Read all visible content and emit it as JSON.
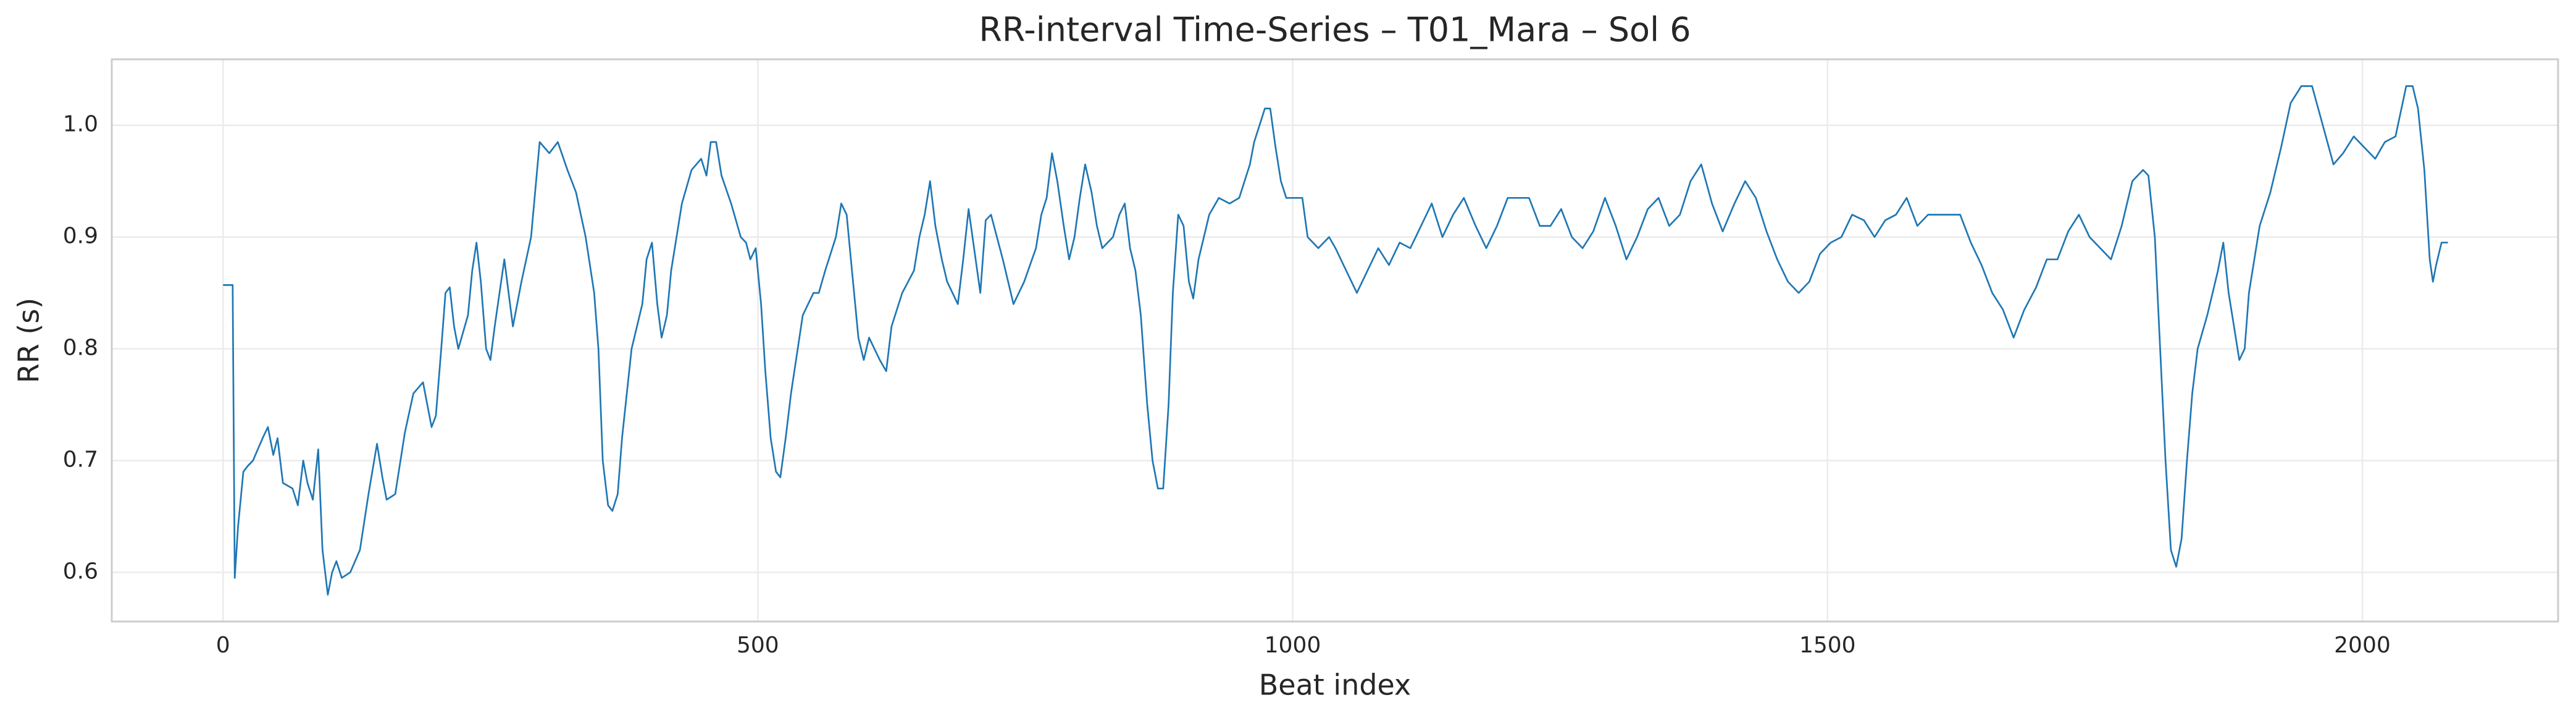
{
  "chart_data": {
    "type": "line",
    "title": "RR-interval Time-Series – T01_Mara – Sol 6",
    "xlabel": "Beat index",
    "ylabel": "RR (s)",
    "color": "#1f77b4",
    "grid": true,
    "xlim": [
      -104,
      2183
    ],
    "ylim": [
      0.556,
      1.059
    ],
    "xticks": [
      0,
      500,
      1000,
      1500,
      2000
    ],
    "yticks": [
      0.6,
      0.7,
      0.8,
      0.9,
      {
        "value": 1,
        "label": "1.0"
      }
    ],
    "x": [
      0,
      9,
      11,
      14,
      19,
      23,
      28,
      37,
      42,
      47,
      51,
      56,
      65,
      70,
      75,
      79,
      84,
      89,
      93,
      98,
      102,
      106,
      111,
      119,
      128,
      136,
      144,
      149,
      153,
      161,
      170,
      178,
      187,
      195,
      199,
      204,
      208,
      212,
      216,
      220,
      229,
      233,
      237,
      241,
      246,
      250,
      254,
      263,
      267,
      271,
      279,
      288,
      296,
      305,
      313,
      322,
      330,
      339,
      347,
      351,
      355,
      360,
      364,
      369,
      373,
      382,
      392,
      396,
      401,
      406,
      410,
      415,
      419,
      429,
      438,
      447,
      452,
      456,
      461,
      466,
      475,
      484,
      489,
      493,
      498,
      503,
      507,
      512,
      517,
      521,
      526,
      531,
      542,
      552,
      557,
      563,
      573,
      578,
      583,
      588,
      594,
      599,
      604,
      614,
      620,
      625,
      635,
      646,
      651,
      656,
      661,
      666,
      672,
      677,
      687,
      692,
      697,
      708,
      713,
      718,
      729,
      739,
      749,
      760,
      765,
      770,
      775,
      780,
      786,
      791,
      796,
      801,
      806,
      812,
      817,
      822,
      832,
      838,
      843,
      848,
      853,
      858,
      864,
      869,
      874,
      879,
      884,
      888,
      893,
      898,
      903,
      907,
      912,
      922,
      931,
      941,
      950,
      960,
      964,
      969,
      974,
      979,
      984,
      989,
      994,
      1009,
      1014,
      1024,
      1034,
      1040,
      1050,
      1055,
      1060,
      1070,
      1080,
      1090,
      1100,
      1110,
      1120,
      1130,
      1140,
      1150,
      1160,
      1171,
      1181,
      1191,
      1201,
      1221,
      1231,
      1241,
      1251,
      1261,
      1271,
      1281,
      1292,
      1302,
      1312,
      1322,
      1332,
      1342,
      1352,
      1362,
      1372,
      1382,
      1392,
      1402,
      1413,
      1423,
      1433,
      1443,
      1453,
      1463,
      1473,
      1483,
      1493,
      1503,
      1513,
      1523,
      1534,
      1544,
      1554,
      1564,
      1574,
      1584,
      1594,
      1604,
      1624,
      1634,
      1644,
      1654,
      1664,
      1674,
      1684,
      1695,
      1705,
      1715,
      1725,
      1735,
      1745,
      1755,
      1765,
      1775,
      1785,
      1795,
      1800,
      1806,
      1811,
      1816,
      1821,
      1826,
      1831,
      1836,
      1841,
      1846,
      1855,
      1865,
      1870,
      1875,
      1880,
      1885,
      1890,
      1894,
      1904,
      1914,
      1924,
      1933,
      1943,
      1953,
      1963,
      1973,
      1982,
      1992,
      2002,
      2012,
      2021,
      2031,
      2041,
      2047,
      2052,
      2058,
      2063,
      2066,
      2069,
      2074,
      2080
    ],
    "values": [
      0.857,
      0.857,
      0.595,
      0.64,
      0.69,
      0.695,
      0.7,
      0.72,
      0.73,
      0.705,
      0.72,
      0.68,
      0.675,
      0.66,
      0.7,
      0.68,
      0.665,
      0.71,
      0.62,
      0.58,
      0.6,
      0.61,
      0.595,
      0.6,
      0.62,
      0.67,
      0.715,
      0.685,
      0.665,
      0.67,
      0.725,
      0.76,
      0.77,
      0.73,
      0.74,
      0.8,
      0.85,
      0.855,
      0.82,
      0.8,
      0.83,
      0.87,
      0.895,
      0.86,
      0.8,
      0.79,
      0.82,
      0.88,
      0.85,
      0.82,
      0.86,
      0.9,
      0.985,
      0.975,
      0.985,
      0.96,
      0.94,
      0.9,
      0.85,
      0.8,
      0.7,
      0.66,
      0.655,
      0.67,
      0.72,
      0.8,
      0.84,
      0.88,
      0.895,
      0.84,
      0.81,
      0.83,
      0.87,
      0.93,
      0.96,
      0.97,
      0.955,
      0.985,
      0.985,
      0.955,
      0.93,
      0.9,
      0.895,
      0.88,
      0.89,
      0.84,
      0.78,
      0.72,
      0.69,
      0.685,
      0.72,
      0.76,
      0.83,
      0.85,
      0.85,
      0.87,
      0.9,
      0.93,
      0.92,
      0.87,
      0.81,
      0.79,
      0.81,
      0.79,
      0.78,
      0.82,
      0.85,
      0.87,
      0.9,
      0.92,
      0.95,
      0.91,
      0.88,
      0.86,
      0.84,
      0.88,
      0.925,
      0.85,
      0.915,
      0.92,
      0.88,
      0.84,
      0.86,
      0.89,
      0.92,
      0.935,
      0.975,
      0.95,
      0.91,
      0.88,
      0.9,
      0.935,
      0.965,
      0.94,
      0.91,
      0.89,
      0.9,
      0.92,
      0.93,
      0.89,
      0.87,
      0.83,
      0.75,
      0.7,
      0.675,
      0.675,
      0.75,
      0.85,
      0.92,
      0.91,
      0.86,
      0.845,
      0.88,
      0.92,
      0.935,
      0.93,
      0.935,
      0.965,
      0.985,
      1.0,
      1.015,
      1.015,
      0.98,
      0.95,
      0.935,
      0.935,
      0.9,
      0.89,
      0.9,
      0.89,
      0.87,
      0.86,
      0.85,
      0.87,
      0.89,
      0.875,
      0.895,
      0.89,
      0.91,
      0.93,
      0.9,
      0.92,
      0.935,
      0.91,
      0.89,
      0.91,
      0.935,
      0.935,
      0.91,
      0.91,
      0.925,
      0.9,
      0.89,
      0.905,
      0.935,
      0.91,
      0.88,
      0.9,
      0.925,
      0.935,
      0.91,
      0.92,
      0.95,
      0.965,
      0.93,
      0.905,
      0.93,
      0.95,
      0.935,
      0.905,
      0.88,
      0.86,
      0.85,
      0.86,
      0.885,
      0.895,
      0.9,
      0.92,
      0.915,
      0.9,
      0.915,
      0.92,
      0.935,
      0.91,
      0.92,
      0.92,
      0.92,
      0.895,
      0.875,
      0.85,
      0.835,
      0.81,
      0.835,
      0.855,
      0.88,
      0.88,
      0.905,
      0.92,
      0.9,
      0.89,
      0.88,
      0.91,
      0.95,
      0.96,
      0.955,
      0.9,
      0.8,
      0.7,
      0.62,
      0.605,
      0.63,
      0.7,
      0.76,
      0.8,
      0.83,
      0.87,
      0.895,
      0.85,
      0.82,
      0.79,
      0.8,
      0.85,
      0.91,
      0.94,
      0.98,
      1.02,
      1.035,
      1.035,
      1.0,
      0.965,
      0.975,
      0.99,
      0.98,
      0.97,
      0.985,
      0.99,
      1.035,
      1.035,
      1.015,
      0.96,
      0.88,
      0.86,
      0.875,
      0.895,
      0.895
    ]
  }
}
